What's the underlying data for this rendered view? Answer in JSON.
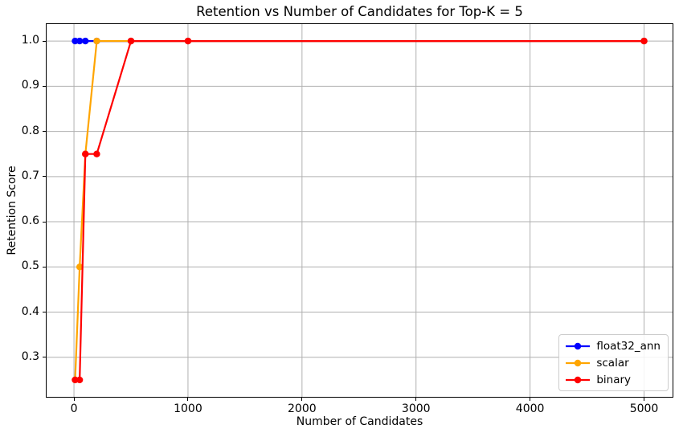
{
  "chart_data": {
    "type": "line",
    "title": "Retention vs Number of Candidates for Top-K = 5",
    "xlabel": "Number of Candidates",
    "ylabel": "Retention Score",
    "x": [
      10,
      50,
      100,
      200,
      500,
      1000,
      5000
    ],
    "series": [
      {
        "name": "float32_ann",
        "color": "#0000ff",
        "values": [
          1.0,
          1.0,
          1.0,
          1.0,
          1.0,
          1.0,
          1.0
        ]
      },
      {
        "name": "scalar",
        "color": "#ffa500",
        "values": [
          0.25,
          0.5,
          0.75,
          1.0,
          1.0,
          1.0,
          1.0
        ]
      },
      {
        "name": "binary",
        "color": "#ff0000",
        "values": [
          0.25,
          0.25,
          0.75,
          0.75,
          1.0,
          1.0,
          1.0
        ]
      }
    ],
    "xticks": [
      0,
      1000,
      2000,
      3000,
      4000,
      5000
    ],
    "yticks": [
      0.3,
      0.4,
      0.5,
      0.6,
      0.7,
      0.8,
      0.9,
      1.0
    ],
    "xlim": [
      -240,
      5250
    ],
    "ylim": [
      0.2125,
      1.0375
    ],
    "grid": true,
    "grid_color": "#b0b0b0",
    "legend": {
      "position": "lower right",
      "entries": [
        "float32_ann",
        "scalar",
        "binary"
      ]
    },
    "colors": {
      "spine": "#000000",
      "background": "#ffffff",
      "text": "#000000"
    }
  }
}
